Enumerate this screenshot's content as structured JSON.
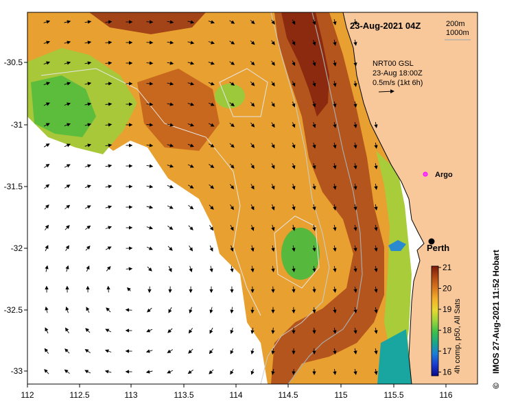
{
  "title": "23-Aug-2021 04Z",
  "depth_contours": [
    "200m",
    "1000m"
  ],
  "current_legend": {
    "line1": "NRT00 GSL",
    "line2": "23-Aug 18:00Z",
    "line3": "0.5m/s (1kt 6h)"
  },
  "argo_label": "Argo",
  "city_label": "Perth",
  "colorbar": {
    "title": "4h comp, p50, All Sats",
    "ticks": [
      "21",
      "20",
      "19",
      "18",
      "17",
      "16"
    ],
    "colors": [
      "#7a1a0a",
      "#b04a14",
      "#d9781e",
      "#f2b02a",
      "#e8d832",
      "#9ad43a",
      "#3cc04a",
      "#1aa68a",
      "#1a7ed8",
      "#1a3ad0",
      "#0a0a8a"
    ]
  },
  "credit": "IMOS 27-Aug-2021 11:52 Hobart",
  "copyright_symbol": "©",
  "x_ticks": [
    "112",
    "112.5",
    "113",
    "113.5",
    "114",
    "114.5",
    "115",
    "115.5",
    "116"
  ],
  "y_ticks": [
    "-30.5",
    "-31",
    "-31.5",
    "-32",
    "-32.5",
    "-33"
  ],
  "land_color": "#f8c89a",
  "axes": {
    "lon_range": [
      112,
      116.3
    ],
    "lat_range": [
      -33.1,
      -30.1
    ]
  }
}
